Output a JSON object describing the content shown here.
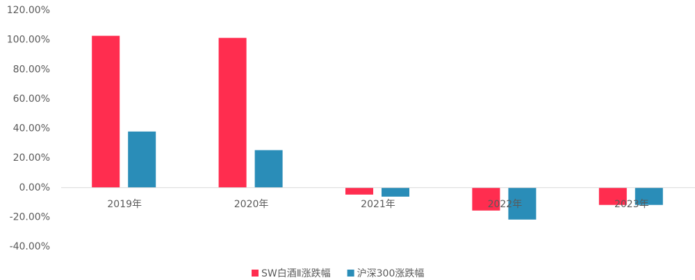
{
  "chart_data": {
    "type": "bar",
    "categories": [
      "2019年",
      "2020年",
      "2021年",
      "2022年",
      "2023年"
    ],
    "series": [
      {
        "name": "SW白酒Ⅱ涨跌幅",
        "color": "#ff2d4f",
        "values": [
          102.8,
          101.4,
          -4.7,
          -15.5,
          -11.7
        ]
      },
      {
        "name": "沪深300涨跌幅",
        "color": "#2a8db8",
        "values": [
          38.0,
          25.4,
          -6.1,
          -21.6,
          -11.7
        ]
      }
    ],
    "ylim": [
      -40,
      120
    ],
    "yticks": [
      {
        "value": -40,
        "label": "-40.00%"
      },
      {
        "value": -20,
        "label": "-20.00%"
      },
      {
        "value": 0,
        "label": "0.00%"
      },
      {
        "value": 20,
        "label": "20.00%"
      },
      {
        "value": 40,
        "label": "40.00%"
      },
      {
        "value": 60,
        "label": "60.00%"
      },
      {
        "value": 80,
        "label": "80.00%"
      },
      {
        "value": 100,
        "label": "100.00%"
      },
      {
        "value": 120,
        "label": "120.00%"
      }
    ],
    "grid": false,
    "legend": "bottom"
  }
}
